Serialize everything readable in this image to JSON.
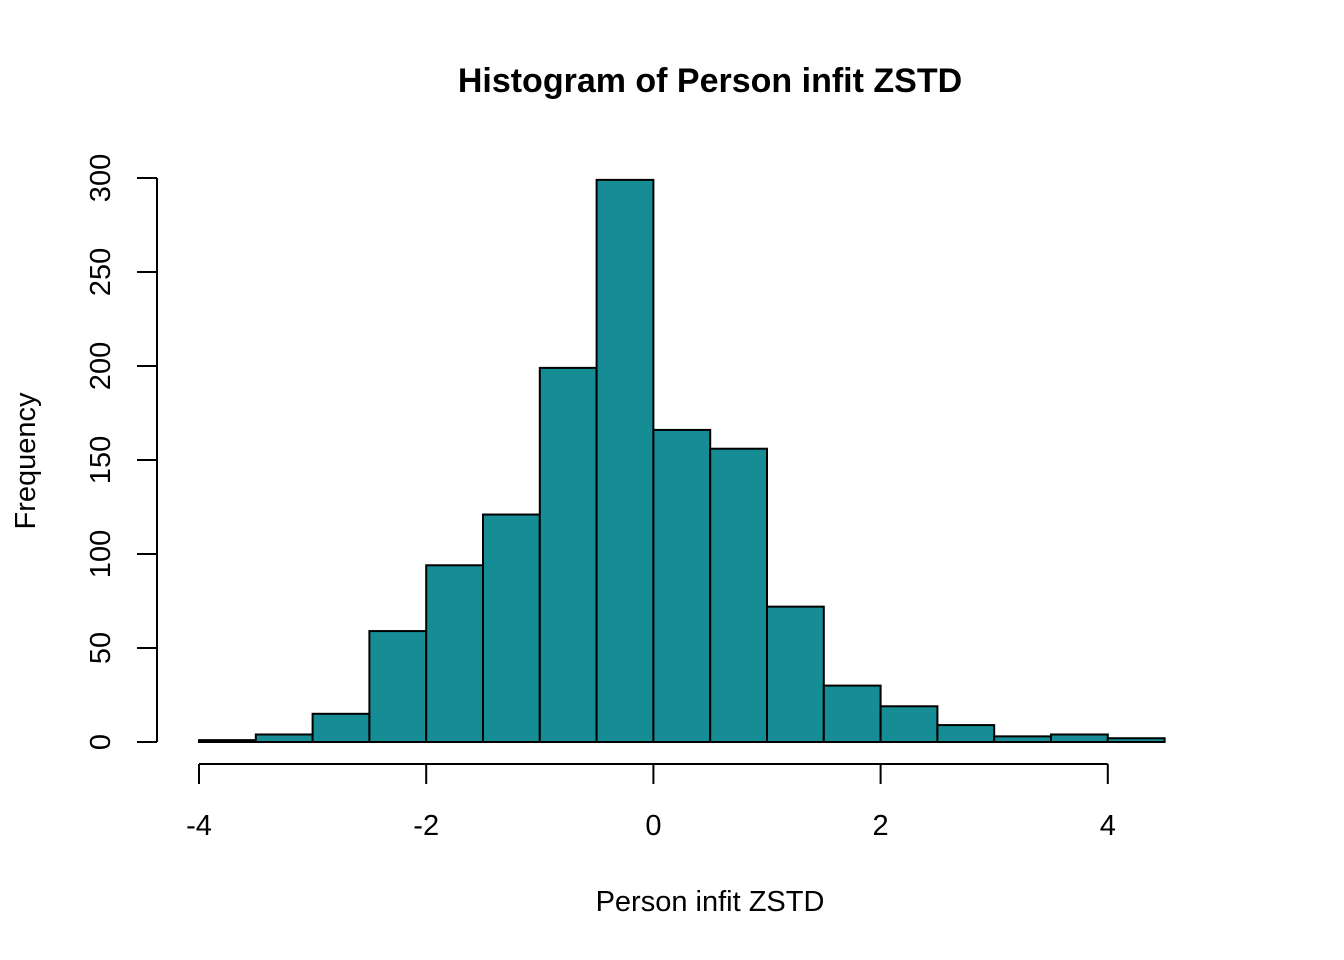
{
  "chart_data": {
    "type": "bar",
    "subtype": "histogram",
    "title": "Histogram of Person infit ZSTD",
    "xlabel": "Person infit ZSTD",
    "ylabel": "Frequency",
    "bar_color": "#168C95",
    "bin_edges": [
      -4,
      -3.5,
      -3,
      -2.5,
      -2,
      -1.5,
      -1,
      -0.5,
      0,
      0.5,
      1,
      1.5,
      2,
      2.5,
      3,
      3.5,
      4,
      4.5
    ],
    "values": [
      1,
      4,
      15,
      59,
      94,
      121,
      199,
      299,
      166,
      156,
      72,
      30,
      19,
      9,
      3,
      4,
      2
    ],
    "xticks": [
      -4,
      -2,
      0,
      2,
      4
    ],
    "xtick_labels": [
      "-4",
      "-2",
      "0",
      "2",
      "4"
    ],
    "yticks": [
      0,
      50,
      100,
      150,
      200,
      250,
      300
    ],
    "ytick_labels": [
      "0",
      "50",
      "100",
      "150",
      "200",
      "250",
      "300"
    ],
    "xlim": [
      -4,
      4.5
    ],
    "ylim": [
      0,
      300
    ],
    "grid": false,
    "legend": "none"
  }
}
